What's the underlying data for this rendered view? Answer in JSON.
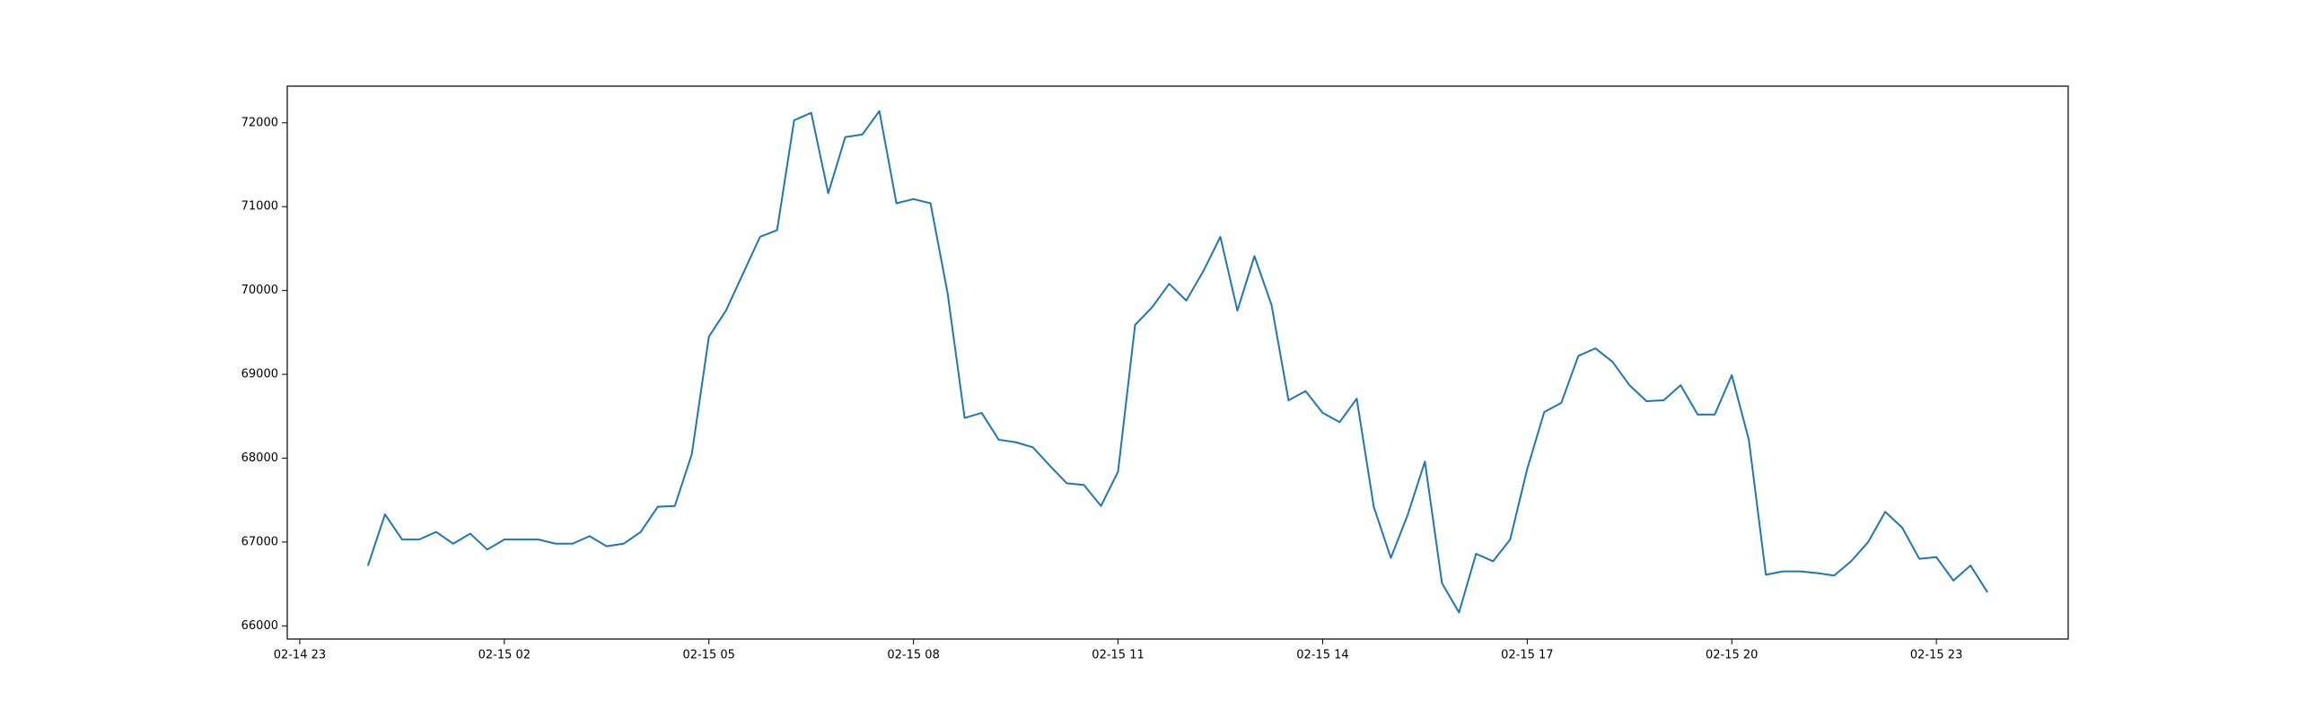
{
  "chart_data": {
    "type": "line",
    "x": [
      "02-15 00:00",
      "02-15 00:15",
      "02-15 00:30",
      "02-15 00:45",
      "02-15 01:00",
      "02-15 01:15",
      "02-15 01:30",
      "02-15 01:45",
      "02-15 02:00",
      "02-15 02:15",
      "02-15 02:30",
      "02-15 02:45",
      "02-15 03:00",
      "02-15 03:15",
      "02-15 03:30",
      "02-15 03:45",
      "02-15 04:00",
      "02-15 04:15",
      "02-15 04:30",
      "02-15 04:45",
      "02-15 05:00",
      "02-15 05:15",
      "02-15 05:30",
      "02-15 05:45",
      "02-15 06:00",
      "02-15 06:15",
      "02-15 06:30",
      "02-15 06:45",
      "02-15 07:00",
      "02-15 07:15",
      "02-15 07:30",
      "02-15 07:45",
      "02-15 08:00",
      "02-15 08:15",
      "02-15 08:30",
      "02-15 08:45",
      "02-15 09:00",
      "02-15 09:15",
      "02-15 09:30",
      "02-15 09:45",
      "02-15 10:00",
      "02-15 10:15",
      "02-15 10:30",
      "02-15 10:45",
      "02-15 11:00",
      "02-15 11:15",
      "02-15 11:30",
      "02-15 11:45",
      "02-15 12:00",
      "02-15 12:15",
      "02-15 12:30",
      "02-15 12:45",
      "02-15 13:00",
      "02-15 13:15",
      "02-15 13:30",
      "02-15 13:45",
      "02-15 14:00",
      "02-15 14:15",
      "02-15 14:30",
      "02-15 14:45",
      "02-15 15:00",
      "02-15 15:15",
      "02-15 15:30",
      "02-15 15:45",
      "02-15 16:00",
      "02-15 16:15",
      "02-15 16:30",
      "02-15 16:45",
      "02-15 17:00",
      "02-15 17:15",
      "02-15 17:30",
      "02-15 17:45",
      "02-15 18:00",
      "02-15 18:15",
      "02-15 18:30",
      "02-15 18:45",
      "02-15 19:00",
      "02-15 19:15",
      "02-15 19:30",
      "02-15 19:45",
      "02-15 20:00",
      "02-15 20:15",
      "02-15 20:30",
      "02-15 20:45",
      "02-15 21:00",
      "02-15 21:15",
      "02-15 21:30",
      "02-15 21:45",
      "02-15 22:00",
      "02-15 22:15",
      "02-15 22:30",
      "02-15 22:45",
      "02-15 23:00",
      "02-15 23:15",
      "02-15 23:30",
      "02-15 23:45"
    ],
    "series": [
      {
        "color": "#1f77b4",
        "values": [
          66717,
          67330,
          67030,
          67030,
          67120,
          66980,
          67100,
          66910,
          67030,
          67030,
          67030,
          66980,
          66980,
          67070,
          66950,
          66980,
          67120,
          67420,
          67430,
          68050,
          69450,
          69760,
          70200,
          70640,
          70720,
          72030,
          72120,
          71160,
          71830,
          71860,
          72140,
          71040,
          71090,
          71040,
          69970,
          68480,
          68540,
          68220,
          68190,
          68130,
          67910,
          67700,
          67680,
          67430,
          67840,
          69590,
          69800,
          70080,
          69880,
          70230,
          70640,
          69760,
          70410,
          69830,
          68690,
          68800,
          68540,
          68430,
          68710,
          67420,
          66810,
          67330,
          67960,
          66510,
          66160,
          66860,
          66770,
          67030,
          67870,
          68550,
          68660,
          69220,
          69310,
          69150,
          68870,
          68680,
          68690,
          68870,
          68520,
          68520,
          68990,
          68220,
          66610,
          66650,
          66650,
          66630,
          66600,
          66770,
          67000,
          67360,
          67170,
          66800,
          66820,
          66540,
          66720,
          66400
        ]
      }
    ],
    "xlim": [
      "02-14 22:49",
      "02-16 00:56"
    ],
    "xticks": [
      "02-14 23",
      "02-15 02",
      "02-15 05",
      "02-15 08",
      "02-15 11",
      "02-15 14",
      "02-15 17",
      "02-15 20",
      "02-15 23"
    ],
    "ylim": [
      65843,
      72437
    ],
    "yticks": [
      66000,
      67000,
      68000,
      69000,
      70000,
      71000,
      72000
    ]
  }
}
